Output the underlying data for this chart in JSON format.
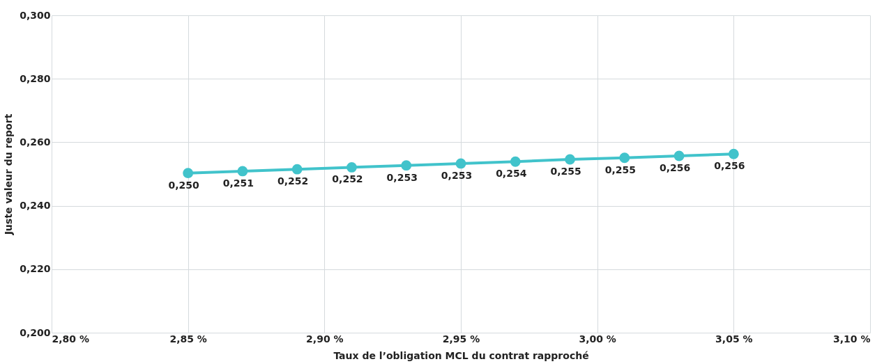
{
  "chart_data": {
    "type": "line",
    "xlabel": "Taux de l’obligation MCL du contrat rapproché",
    "ylabel": "Juste valeur du report",
    "x": [
      2.85,
      2.87,
      2.89,
      2.91,
      2.93,
      2.95,
      2.97,
      2.99,
      3.01,
      3.03,
      3.05
    ],
    "series": [
      {
        "color": "#41c3cb",
        "values": [
          0.2503,
          0.2509,
          0.2515,
          0.2521,
          0.2527,
          0.2533,
          0.2539,
          0.2546,
          0.2551,
          0.2557,
          0.2563
        ],
        "value_labels": [
          "0,250",
          "0,251",
          "0,252",
          "0,252",
          "0,253",
          "0,253",
          "0,254",
          "0,255",
          "0,255",
          "0,256",
          "0,256"
        ]
      }
    ],
    "marker": "circle",
    "line_style": "solid",
    "grid": true,
    "legend": false,
    "xlim": [
      2.8,
      3.1
    ],
    "ylim": [
      0.2,
      0.3
    ],
    "xticks": [
      {
        "value": 2.8,
        "label": "2,80 %"
      },
      {
        "value": 2.85,
        "label": "2,85 %"
      },
      {
        "value": 2.9,
        "label": "2,90 %"
      },
      {
        "value": 2.95,
        "label": "2,95 %"
      },
      {
        "value": 3.0,
        "label": "3,00 %"
      },
      {
        "value": 3.05,
        "label": "3,05 %"
      },
      {
        "value": 3.1,
        "label": "3,10 %"
      }
    ],
    "yticks": [
      {
        "value": 0.2,
        "label": "0,200"
      },
      {
        "value": 0.22,
        "label": "0,220"
      },
      {
        "value": 0.24,
        "label": "0,240"
      },
      {
        "value": 0.26,
        "label": "0,260"
      },
      {
        "value": 0.28,
        "label": "0,280"
      },
      {
        "value": 0.3,
        "label": "0,300"
      }
    ]
  }
}
